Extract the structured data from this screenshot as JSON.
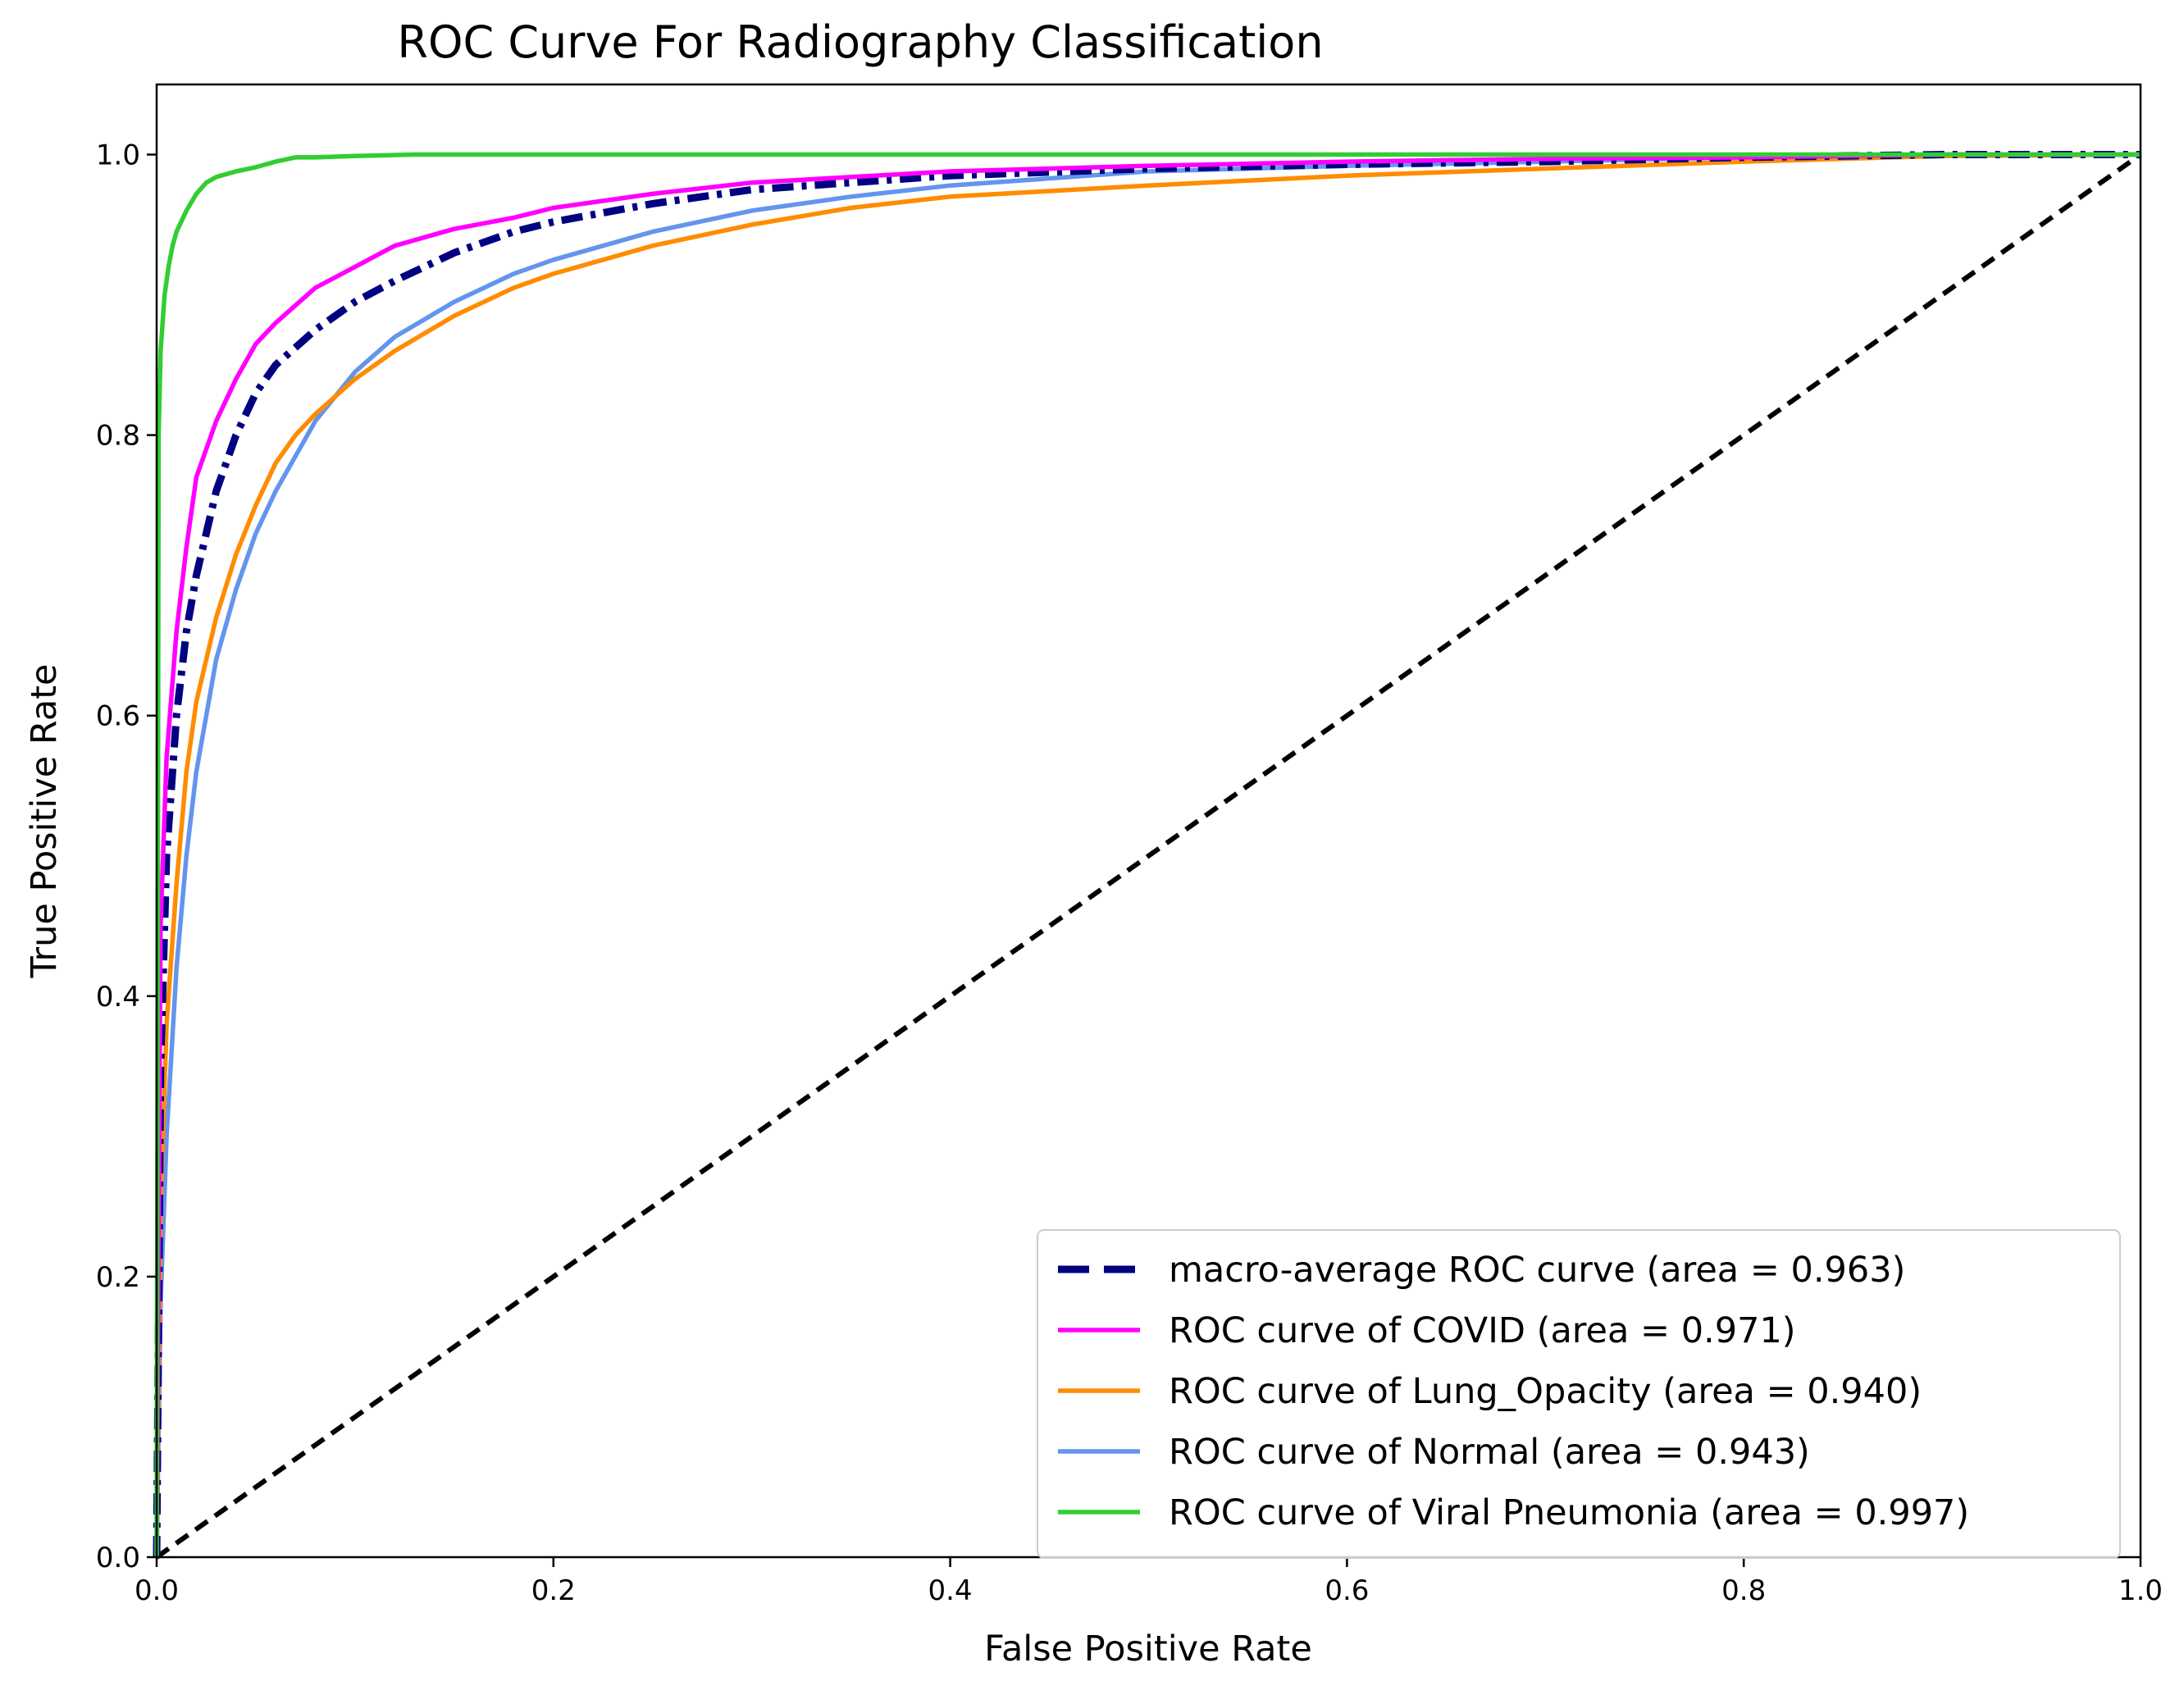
{
  "chart_data": {
    "type": "line",
    "title": "ROC Curve For Radiography Classification",
    "xlabel": "False Positive Rate",
    "ylabel": "True Positive Rate",
    "xlim": [
      0.0,
      1.0
    ],
    "ylim": [
      0.0,
      1.05
    ],
    "xticks": [
      "0.0",
      "0.2",
      "0.4",
      "0.6",
      "0.8",
      "1.0"
    ],
    "yticks": [
      "0.0",
      "0.2",
      "0.4",
      "0.6",
      "0.8",
      "1.0"
    ],
    "grid": false,
    "legend_position": "lower-right",
    "series": [
      {
        "name": "macro-average ROC curve (area = 0.963)",
        "color": "#000080",
        "style": "dashdot",
        "x": [
          0,
          0.002,
          0.005,
          0.01,
          0.015,
          0.02,
          0.03,
          0.04,
          0.05,
          0.06,
          0.08,
          0.1,
          0.12,
          0.15,
          0.18,
          0.2,
          0.25,
          0.3,
          0.35,
          0.4,
          0.5,
          0.6,
          0.7,
          0.8,
          0.9,
          1.0
        ],
        "y": [
          0,
          0.35,
          0.5,
          0.6,
          0.66,
          0.7,
          0.76,
          0.8,
          0.83,
          0.85,
          0.875,
          0.895,
          0.91,
          0.93,
          0.945,
          0.952,
          0.965,
          0.975,
          0.98,
          0.985,
          0.99,
          0.993,
          0.995,
          0.998,
          1.0,
          1.0
        ]
      },
      {
        "name": "ROC curve of COVID (area = 0.971)",
        "color": "#ff00ff",
        "style": "solid",
        "x": [
          0,
          0.002,
          0.005,
          0.01,
          0.015,
          0.02,
          0.03,
          0.04,
          0.05,
          0.06,
          0.08,
          0.1,
          0.12,
          0.15,
          0.18,
          0.2,
          0.25,
          0.3,
          0.35,
          0.4,
          0.5,
          0.6,
          0.7,
          0.8,
          0.9,
          1.0
        ],
        "y": [
          0,
          0.45,
          0.57,
          0.66,
          0.72,
          0.77,
          0.81,
          0.84,
          0.865,
          0.88,
          0.905,
          0.92,
          0.935,
          0.947,
          0.955,
          0.962,
          0.972,
          0.98,
          0.984,
          0.988,
          0.992,
          0.995,
          0.997,
          0.998,
          1.0,
          1.0
        ]
      },
      {
        "name": "ROC curve of Lung_Opacity (area = 0.940)",
        "color": "#ff8c00",
        "style": "solid",
        "x": [
          0,
          0.002,
          0.005,
          0.01,
          0.015,
          0.02,
          0.03,
          0.04,
          0.05,
          0.06,
          0.07,
          0.08,
          0.1,
          0.12,
          0.15,
          0.18,
          0.2,
          0.25,
          0.3,
          0.35,
          0.4,
          0.5,
          0.6,
          0.7,
          0.8,
          0.9,
          1.0
        ],
        "y": [
          0,
          0.25,
          0.38,
          0.48,
          0.56,
          0.61,
          0.67,
          0.715,
          0.75,
          0.78,
          0.8,
          0.815,
          0.84,
          0.86,
          0.885,
          0.905,
          0.915,
          0.935,
          0.95,
          0.962,
          0.97,
          0.978,
          0.985,
          0.99,
          0.995,
          0.999,
          1.0
        ]
      },
      {
        "name": "ROC curve of Normal (area = 0.943)",
        "color": "#6495ed",
        "style": "solid",
        "x": [
          0,
          0.002,
          0.005,
          0.01,
          0.015,
          0.02,
          0.03,
          0.04,
          0.05,
          0.06,
          0.07,
          0.08,
          0.1,
          0.12,
          0.15,
          0.18,
          0.2,
          0.25,
          0.3,
          0.35,
          0.4,
          0.5,
          0.6,
          0.7,
          0.8,
          0.9,
          1.0
        ],
        "y": [
          0,
          0.18,
          0.3,
          0.42,
          0.5,
          0.56,
          0.64,
          0.69,
          0.73,
          0.76,
          0.785,
          0.81,
          0.845,
          0.87,
          0.895,
          0.915,
          0.925,
          0.945,
          0.96,
          0.97,
          0.978,
          0.988,
          0.992,
          0.995,
          0.998,
          1.0,
          1.0
        ]
      },
      {
        "name": "ROC curve of Viral Pneumonia (area = 0.997)",
        "color": "#32cd32",
        "style": "solid",
        "x": [
          0,
          0.001,
          0.002,
          0.004,
          0.006,
          0.008,
          0.01,
          0.015,
          0.02,
          0.025,
          0.03,
          0.04,
          0.05,
          0.06,
          0.07,
          0.08,
          0.1,
          0.13,
          0.2,
          0.4,
          0.6,
          0.8,
          1.0
        ],
        "y": [
          0,
          0.8,
          0.86,
          0.9,
          0.92,
          0.935,
          0.945,
          0.96,
          0.972,
          0.98,
          0.984,
          0.988,
          0.991,
          0.995,
          0.998,
          0.998,
          0.999,
          1.0,
          1.0,
          1.0,
          1.0,
          1.0,
          1.0
        ]
      },
      {
        "name": "",
        "color": "#000000",
        "style": "dashed",
        "x": [
          0,
          1
        ],
        "y": [
          0,
          1
        ]
      }
    ]
  }
}
